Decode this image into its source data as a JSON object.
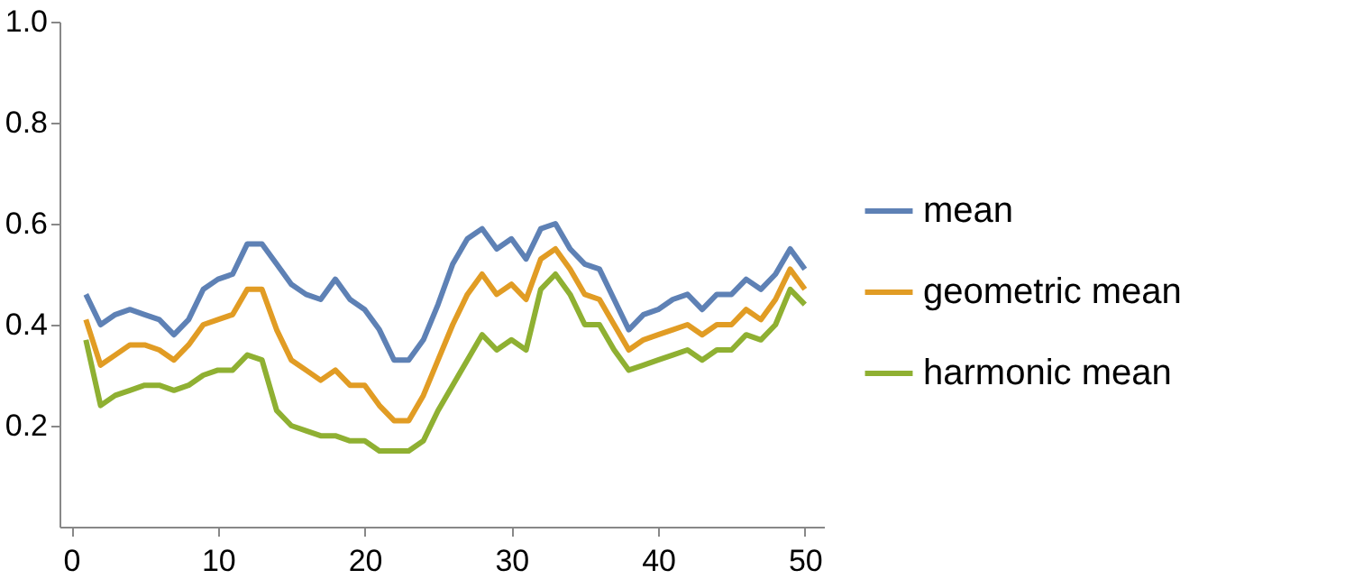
{
  "chart_data": {
    "type": "line",
    "x": [
      1,
      2,
      3,
      4,
      5,
      6,
      7,
      8,
      9,
      10,
      11,
      12,
      13,
      14,
      15,
      16,
      17,
      18,
      19,
      20,
      21,
      22,
      23,
      24,
      25,
      26,
      27,
      28,
      29,
      30,
      31,
      32,
      33,
      34,
      35,
      36,
      37,
      38,
      39,
      40,
      41,
      42,
      43,
      44,
      45,
      46,
      47,
      48,
      49,
      50
    ],
    "series": [
      {
        "name": "mean",
        "color": "#5e81b5",
        "values": [
          0.46,
          0.4,
          0.42,
          0.43,
          0.42,
          0.41,
          0.38,
          0.41,
          0.47,
          0.49,
          0.5,
          0.56,
          0.56,
          0.52,
          0.48,
          0.46,
          0.45,
          0.49,
          0.45,
          0.43,
          0.39,
          0.33,
          0.33,
          0.37,
          0.44,
          0.52,
          0.57,
          0.59,
          0.55,
          0.57,
          0.53,
          0.59,
          0.6,
          0.55,
          0.52,
          0.51,
          0.45,
          0.39,
          0.42,
          0.43,
          0.45,
          0.46,
          0.43,
          0.46,
          0.46,
          0.49,
          0.47,
          0.5,
          0.55,
          0.51
        ]
      },
      {
        "name": "geometric mean",
        "color": "#e19c24",
        "values": [
          0.41,
          0.32,
          0.34,
          0.36,
          0.36,
          0.35,
          0.33,
          0.36,
          0.4,
          0.41,
          0.42,
          0.47,
          0.47,
          0.39,
          0.33,
          0.31,
          0.29,
          0.31,
          0.28,
          0.28,
          0.24,
          0.21,
          0.21,
          0.26,
          0.33,
          0.4,
          0.46,
          0.5,
          0.46,
          0.48,
          0.45,
          0.53,
          0.55,
          0.51,
          0.46,
          0.45,
          0.4,
          0.35,
          0.37,
          0.38,
          0.39,
          0.4,
          0.38,
          0.4,
          0.4,
          0.43,
          0.41,
          0.45,
          0.51,
          0.47
        ]
      },
      {
        "name": "harmonic mean",
        "color": "#8fb032",
        "values": [
          0.37,
          0.24,
          0.26,
          0.27,
          0.28,
          0.28,
          0.27,
          0.28,
          0.3,
          0.31,
          0.31,
          0.34,
          0.33,
          0.23,
          0.2,
          0.19,
          0.18,
          0.18,
          0.17,
          0.17,
          0.15,
          0.15,
          0.15,
          0.17,
          0.23,
          0.28,
          0.33,
          0.38,
          0.35,
          0.37,
          0.35,
          0.47,
          0.5,
          0.46,
          0.4,
          0.4,
          0.35,
          0.31,
          0.32,
          0.33,
          0.34,
          0.35,
          0.33,
          0.35,
          0.35,
          0.38,
          0.37,
          0.4,
          0.47,
          0.44
        ]
      }
    ],
    "xlim": [
      -0.8,
      51.3
    ],
    "xticks": [
      0,
      10,
      20,
      30,
      40,
      50
    ],
    "ylim": [
      0,
      1
    ],
    "yticks": [
      0.2,
      0.4,
      0.6,
      0.8,
      {
        "value": 1,
        "label": "1.0"
      }
    ],
    "legend": "right",
    "grid": false,
    "marker": "none",
    "line_style": "solid"
  }
}
